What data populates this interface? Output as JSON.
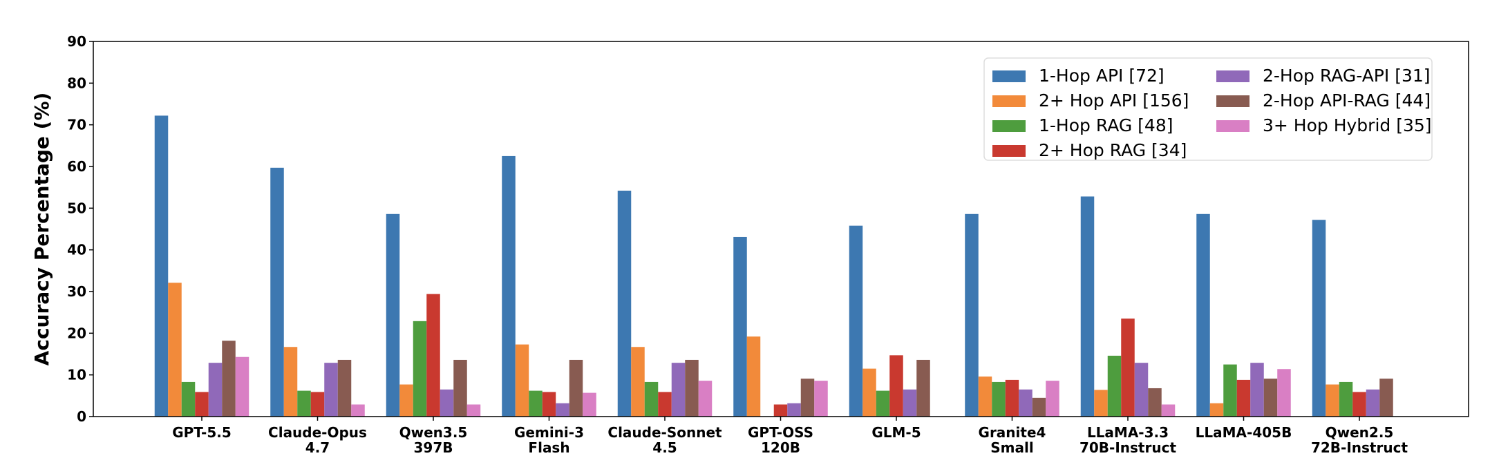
{
  "chart_data": {
    "type": "bar",
    "title": "",
    "xlabel": "",
    "ylabel": "Accuracy Percentage (%)",
    "ylim": [
      0,
      90
    ],
    "yticks": [
      "0",
      "10",
      "20",
      "30",
      "40",
      "50",
      "60",
      "70",
      "80",
      "90"
    ],
    "grid": false,
    "legend_position": "top-right",
    "legend_columns": 2,
    "categories": [
      [
        "GPT-5.5"
      ],
      [
        "Claude-Opus",
        "4.7"
      ],
      [
        "Qwen3.5",
        "397B"
      ],
      [
        "Gemini-3",
        "Flash"
      ],
      [
        "Claude-Sonnet",
        "4.5"
      ],
      [
        "GPT-OSS",
        "120B"
      ],
      [
        "GLM-5"
      ],
      [
        "Granite4",
        "Small"
      ],
      [
        "LLaMA-3.3",
        "70B-Instruct"
      ],
      [
        "LLaMA-405B"
      ],
      [
        "Qwen2.5",
        "72B-Instruct"
      ]
    ],
    "series": [
      {
        "name": "1-Hop API [72]",
        "color": "#3d78b1",
        "values": [
          72.2,
          59.7,
          48.6,
          62.5,
          54.2,
          43.1,
          45.8,
          48.6,
          52.8,
          48.6,
          47.2
        ]
      },
      {
        "name": "2+ Hop API [156]",
        "color": "#f28a3a",
        "values": [
          32.1,
          16.7,
          7.7,
          17.3,
          16.7,
          19.2,
          11.5,
          9.6,
          6.4,
          3.2,
          7.7
        ]
      },
      {
        "name": "1-Hop RAG [48]",
        "color": "#4e9d3e",
        "values": [
          8.3,
          6.2,
          22.9,
          6.2,
          8.3,
          0.0,
          6.2,
          8.3,
          14.6,
          12.5,
          8.3
        ]
      },
      {
        "name": "2+ Hop RAG [34]",
        "color": "#c9392f",
        "values": [
          5.9,
          5.9,
          29.4,
          5.9,
          5.9,
          2.9,
          14.7,
          8.8,
          23.5,
          8.8,
          5.9
        ]
      },
      {
        "name": "2-Hop RAG-API [31]",
        "color": "#9069b9",
        "values": [
          12.9,
          12.9,
          6.5,
          3.2,
          12.9,
          3.2,
          6.5,
          6.5,
          12.9,
          12.9,
          6.5
        ]
      },
      {
        "name": "2-Hop API-RAG [44]",
        "color": "#885b51",
        "values": [
          18.2,
          13.6,
          13.6,
          13.6,
          13.6,
          9.1,
          13.6,
          4.5,
          6.8,
          9.1,
          9.1
        ]
      },
      {
        "name": "3+ Hop Hybrid [35]",
        "color": "#d97fc4",
        "values": [
          14.3,
          2.9,
          2.9,
          5.7,
          8.6,
          8.6,
          0.0,
          8.6,
          2.9,
          11.4,
          0.0
        ]
      }
    ]
  }
}
